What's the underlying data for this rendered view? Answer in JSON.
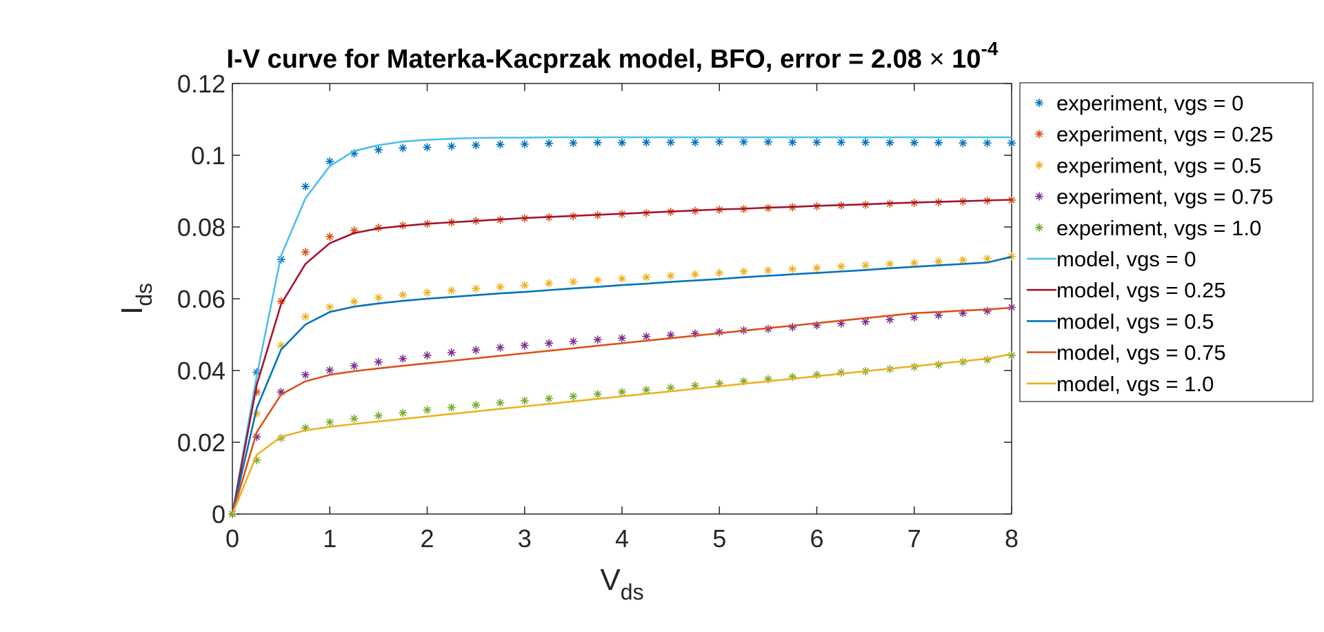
{
  "chart_data": {
    "type": "line",
    "title": {
      "main": "I-V curve for Materka-Kacprzak model, BFO, error = 2.08",
      "times": "×",
      "base": "10",
      "exponent": "-4"
    },
    "xlabel": {
      "main": "V",
      "sub": "ds"
    },
    "ylabel": {
      "main": "I",
      "sub": "ds"
    },
    "xlim": [
      0,
      8
    ],
    "ylim": [
      0,
      0.12
    ],
    "xticks": [
      0,
      1,
      2,
      3,
      4,
      5,
      6,
      7,
      8
    ],
    "yticks": [
      0,
      0.02,
      0.04,
      0.06,
      0.08,
      0.1,
      0.12
    ],
    "xtick_labels": [
      "0",
      "1",
      "2",
      "3",
      "4",
      "5",
      "6",
      "7",
      "8"
    ],
    "ytick_labels": [
      "0",
      "0.02",
      "0.04",
      "0.06",
      "0.08",
      "0.1",
      "0.12"
    ],
    "grid": false,
    "legend_position": "outside-right",
    "x": [
      0,
      0.25,
      0.5,
      0.75,
      1.0,
      1.25,
      1.5,
      1.75,
      2.0,
      2.25,
      2.5,
      2.75,
      3.0,
      3.25,
      3.5,
      3.75,
      4.0,
      4.25,
      4.5,
      4.75,
      5.0,
      5.25,
      5.5,
      5.75,
      6.0,
      6.25,
      6.5,
      6.75,
      7.0,
      7.25,
      7.5,
      7.75,
      8.0
    ],
    "series": [
      {
        "name": "experiment, vgs = 0",
        "style": "markers",
        "color": "#0072BD",
        "values": [
          0,
          0.0395,
          0.071,
          0.0913,
          0.0983,
          0.1005,
          0.1015,
          0.102,
          0.1022,
          0.1025,
          0.1028,
          0.103,
          0.1031,
          0.1033,
          0.1034,
          0.1035,
          0.1035,
          0.1036,
          0.1036,
          0.1036,
          0.1037,
          0.1037,
          0.1037,
          0.1036,
          0.1036,
          0.1036,
          0.1036,
          0.1035,
          0.1035,
          0.1035,
          0.1034,
          0.1034,
          0.1034
        ]
      },
      {
        "name": "experiment, vgs = 0.25",
        "style": "markers",
        "color": "#D95319",
        "values": [
          0,
          0.034,
          0.0593,
          0.073,
          0.0773,
          0.079,
          0.0798,
          0.0804,
          0.0809,
          0.0813,
          0.0817,
          0.082,
          0.0824,
          0.0827,
          0.083,
          0.0833,
          0.0836,
          0.0839,
          0.0842,
          0.0845,
          0.0848,
          0.085,
          0.0853,
          0.0855,
          0.0858,
          0.086,
          0.0862,
          0.0865,
          0.0867,
          0.0869,
          0.0871,
          0.0873,
          0.0875
        ]
      },
      {
        "name": "experiment, vgs = 0.5",
        "style": "markers",
        "color": "#EDB120",
        "values": [
          0,
          0.028,
          0.047,
          0.055,
          0.0577,
          0.0592,
          0.0603,
          0.0611,
          0.0617,
          0.0623,
          0.0628,
          0.0633,
          0.0638,
          0.0643,
          0.0647,
          0.0652,
          0.0656,
          0.066,
          0.0664,
          0.0668,
          0.0672,
          0.0676,
          0.0679,
          0.0683,
          0.0686,
          0.069,
          0.0693,
          0.0697,
          0.07,
          0.0704,
          0.0708,
          0.0712,
          0.0718
        ]
      },
      {
        "name": "experiment, vgs = 0.75",
        "style": "markers",
        "color": "#7E2F8E",
        "values": [
          0,
          0.0215,
          0.034,
          0.0388,
          0.0401,
          0.0413,
          0.0424,
          0.0433,
          0.0442,
          0.045,
          0.0457,
          0.0464,
          0.047,
          0.0476,
          0.0481,
          0.0486,
          0.049,
          0.0495,
          0.0499,
          0.0503,
          0.0507,
          0.0512,
          0.0516,
          0.0521,
          0.0526,
          0.0531,
          0.0536,
          0.0542,
          0.0548,
          0.0554,
          0.056,
          0.0566,
          0.0576
        ]
      },
      {
        "name": "experiment, vgs = 1.0",
        "style": "markers",
        "color": "#77AC30",
        "values": [
          0,
          0.015,
          0.0212,
          0.024,
          0.0256,
          0.0266,
          0.0274,
          0.0282,
          0.029,
          0.0297,
          0.0304,
          0.031,
          0.0316,
          0.0322,
          0.0328,
          0.0334,
          0.034,
          0.0346,
          0.0352,
          0.0358,
          0.0364,
          0.037,
          0.0376,
          0.0382,
          0.0388,
          0.0394,
          0.0398,
          0.0404,
          0.041,
          0.0416,
          0.0424,
          0.043,
          0.0442
        ]
      },
      {
        "name": "model, vgs = 0",
        "style": "line",
        "color": "#4DBEEE",
        "values": [
          0,
          0.0385,
          0.072,
          0.088,
          0.097,
          0.1012,
          0.1028,
          0.1038,
          0.1043,
          0.1046,
          0.1048,
          0.1049,
          0.1049,
          0.105,
          0.105,
          0.105,
          0.105,
          0.105,
          0.105,
          0.105,
          0.105,
          0.105,
          0.105,
          0.105,
          0.105,
          0.105,
          0.105,
          0.105,
          0.105,
          0.105,
          0.105,
          0.105,
          0.105
        ]
      },
      {
        "name": "model, vgs = 0.25",
        "style": "line",
        "color": "#A2142F",
        "values": [
          0,
          0.036,
          0.0585,
          0.0697,
          0.0755,
          0.0783,
          0.0796,
          0.0803,
          0.0809,
          0.0813,
          0.0817,
          0.0821,
          0.0825,
          0.0828,
          0.0831,
          0.0834,
          0.0837,
          0.084,
          0.0843,
          0.0846,
          0.0849,
          0.0851,
          0.0854,
          0.0856,
          0.0859,
          0.0861,
          0.0863,
          0.0866,
          0.0868,
          0.087,
          0.0872,
          0.0874,
          0.0876
        ]
      },
      {
        "name": "model, vgs = 0.5",
        "style": "line",
        "color": "#0072BD",
        "values": [
          0,
          0.0295,
          0.0458,
          0.0528,
          0.0563,
          0.0578,
          0.0587,
          0.0594,
          0.06,
          0.0605,
          0.061,
          0.0615,
          0.0619,
          0.0624,
          0.0629,
          0.0633,
          0.0638,
          0.0642,
          0.0647,
          0.0651,
          0.0655,
          0.066,
          0.0664,
          0.0668,
          0.0672,
          0.0676,
          0.068,
          0.0685,
          0.0689,
          0.0693,
          0.0697,
          0.0701,
          0.0717
        ]
      },
      {
        "name": "model, vgs = 0.75",
        "style": "line",
        "color": "#D95319",
        "values": [
          0,
          0.0228,
          0.0333,
          0.037,
          0.0388,
          0.0398,
          0.0406,
          0.0413,
          0.042,
          0.0427,
          0.0434,
          0.0441,
          0.0448,
          0.0455,
          0.0462,
          0.0469,
          0.0476,
          0.0483,
          0.049,
          0.0497,
          0.0504,
          0.0511,
          0.0518,
          0.0525,
          0.0532,
          0.0539,
          0.0546,
          0.0553,
          0.056,
          0.0563,
          0.0567,
          0.057,
          0.0575
        ]
      },
      {
        "name": "model, vgs = 1.0",
        "style": "line",
        "color": "#EDB120",
        "values": [
          0,
          0.0165,
          0.0215,
          0.0233,
          0.0243,
          0.0251,
          0.0258,
          0.0265,
          0.0272,
          0.0279,
          0.0286,
          0.0293,
          0.03,
          0.0307,
          0.0314,
          0.0321,
          0.0328,
          0.0335,
          0.0342,
          0.0349,
          0.0356,
          0.0363,
          0.037,
          0.0377,
          0.0384,
          0.0391,
          0.0398,
          0.0405,
          0.0412,
          0.0419,
          0.0426,
          0.0433,
          0.0446
        ]
      }
    ]
  }
}
